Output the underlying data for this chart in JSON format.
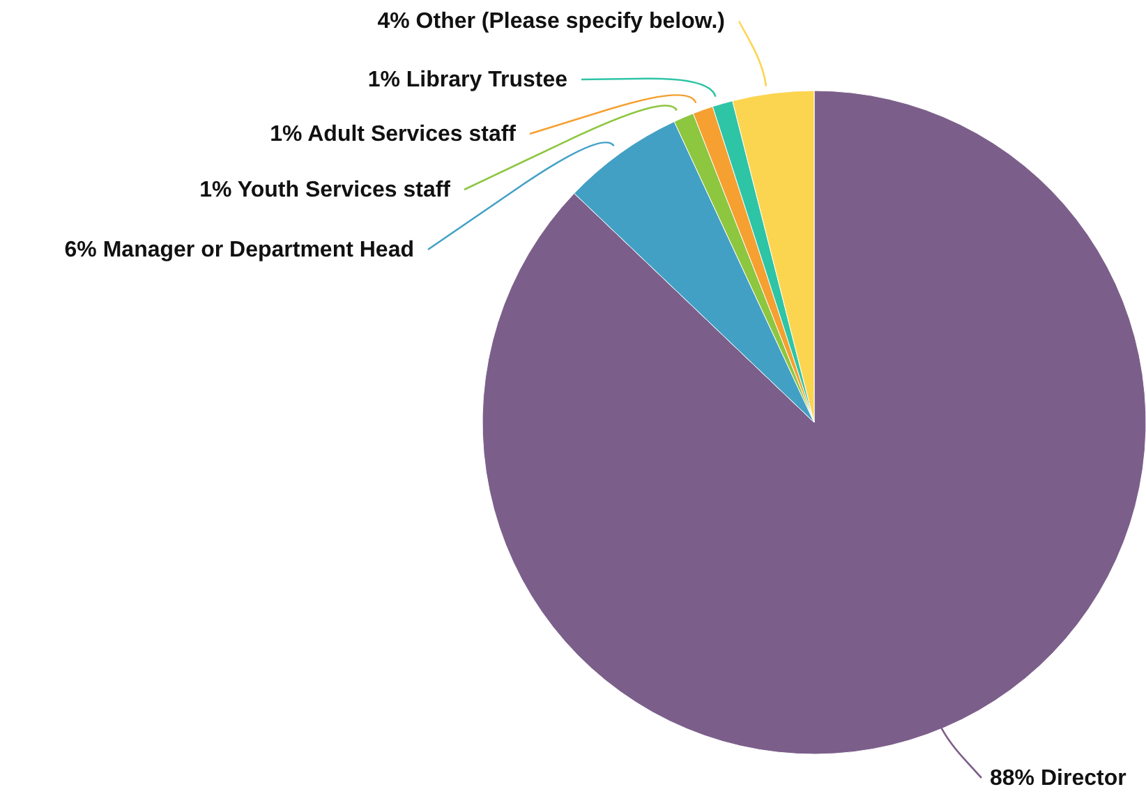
{
  "chart_data": {
    "type": "pie",
    "categories": [
      "Director",
      "Manager or Department Head",
      "Youth Services staff",
      "Adult Services staff",
      "Library Trustee",
      "Other (Please specify below.)"
    ],
    "values": [
      88,
      6,
      1,
      1,
      1,
      4
    ],
    "value_labels": [
      "88%",
      "6%",
      "1%",
      "1%",
      "1%",
      "4%"
    ],
    "colors": [
      "#7b5f8a",
      "#43a0c5",
      "#8dc63f",
      "#f5a030",
      "#2ec4a6",
      "#fcd550"
    ],
    "legend": false
  }
}
